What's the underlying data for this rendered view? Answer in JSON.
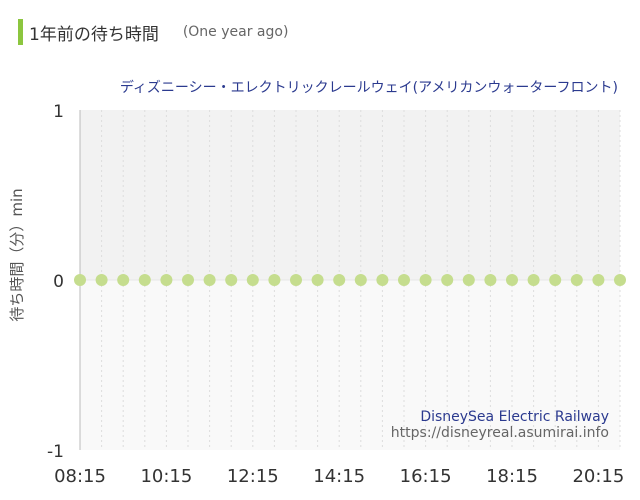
{
  "header": {
    "title": "1年前の待ち時間",
    "subtitle": "(One year ago)"
  },
  "colors": {
    "accent": "#8cc63f",
    "point": "#c5dd8e",
    "title_text": "#2b3a8f",
    "axis_text": "#333333",
    "credit_text": "#666666",
    "plot_upper": "#f2f2f2",
    "plot_lower": "#f9f9f9"
  },
  "chart_data": {
    "type": "scatter",
    "title": "ディズニーシー・エレクトリックレールウェイ(アメリカンウォーターフロント)",
    "ylabel": "待ち時間（分）min",
    "xlabel": "",
    "ylim": [
      -1,
      1
    ],
    "y_ticks": [
      "1",
      "0",
      "-1"
    ],
    "x_ticks": [
      "08:15",
      "10:15",
      "12:15",
      "14:15",
      "16:15",
      "18:15",
      "20:15"
    ],
    "x_start": "08:15",
    "x_end": "20:45",
    "interval_minutes": 30,
    "x": [
      "08:15",
      "08:45",
      "09:15",
      "09:45",
      "10:15",
      "10:45",
      "11:15",
      "11:45",
      "12:15",
      "12:45",
      "13:15",
      "13:45",
      "14:15",
      "14:45",
      "15:15",
      "15:45",
      "16:15",
      "16:45",
      "17:15",
      "17:45",
      "18:15",
      "18:45",
      "19:15",
      "19:45",
      "20:15",
      "20:45"
    ],
    "series": [
      {
        "values": [
          0,
          0,
          0,
          0,
          0,
          0,
          0,
          0,
          0,
          0,
          0,
          0,
          0,
          0,
          0,
          0,
          0,
          0,
          0,
          0,
          0,
          0,
          0,
          0,
          0,
          0
        ]
      }
    ],
    "grid": true,
    "watermark": {
      "name": "DisneySea Electric Railway",
      "url": "https://disneyreal.asumirai.info"
    }
  }
}
